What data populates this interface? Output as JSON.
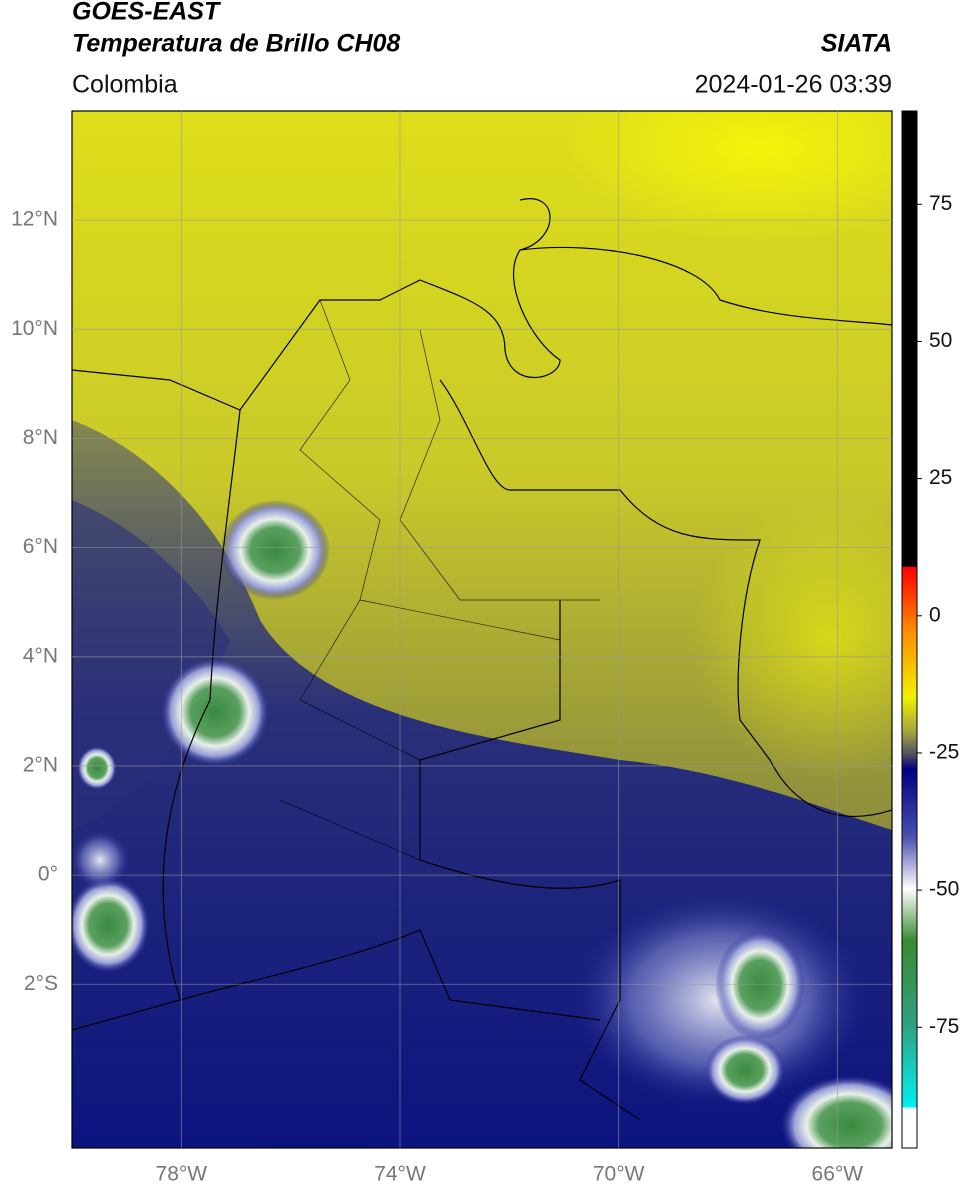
{
  "chart_data": {
    "type": "map",
    "title": "GOES-EAST",
    "subtitle": "Temperatura de Brillo CH08",
    "source": "SIATA",
    "region": "Colombia",
    "timestamp": "2024-01-26 03:39",
    "xlim": [
      -80,
      -65
    ],
    "ylim": [
      -5,
      14
    ],
    "xticks": [
      {
        "value": -78,
        "label": "78°W"
      },
      {
        "value": -74,
        "label": "74°W"
      },
      {
        "value": -70,
        "label": "70°W"
      },
      {
        "value": -66,
        "label": "66°W"
      }
    ],
    "yticks": [
      {
        "value": 12,
        "label": "12°N"
      },
      {
        "value": 10,
        "label": "10°N"
      },
      {
        "value": 8,
        "label": "8°N"
      },
      {
        "value": 6,
        "label": "6°N"
      },
      {
        "value": 4,
        "label": "4°N"
      },
      {
        "value": 2,
        "label": "2°N"
      },
      {
        "value": 0,
        "label": "0°"
      },
      {
        "value": -2,
        "label": "2°S"
      }
    ],
    "grid": true,
    "colorbar": {
      "lim": [
        -97,
        92
      ],
      "ticks": [
        75,
        50,
        25,
        0,
        -25,
        -50,
        -75
      ]
    }
  }
}
